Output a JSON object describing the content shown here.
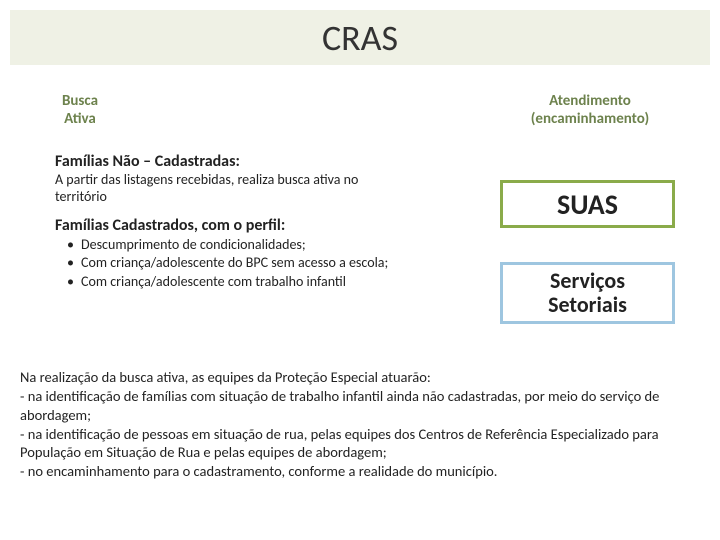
{
  "title": "CRAS",
  "labels": {
    "left_line1": "Busca",
    "left_line2": "Ativa",
    "right_line1": "Atendimento",
    "right_line2": "(encaminhamento)"
  },
  "section1": {
    "heading": "Famílias Não – Cadastradas:",
    "text": "A partir das listagens recebidas, realiza busca ativa no território"
  },
  "section2": {
    "heading": "Famílias Cadastrados, com o perfil:",
    "bullets": [
      "Descumprimento de condicionalidades;",
      "Com criança/adolescente do BPC sem acesso a escola;",
      "Com criança/adolescente com trabalho infantil"
    ]
  },
  "boxes": {
    "suas": "SUAS",
    "servicos_line1": "Serviços",
    "servicos_line2": "Setoriais"
  },
  "footer": {
    "intro": "Na realização da busca ativa, as equipes da Proteção Especial atuarão:",
    "line1": "- na identificação de famílias com situação de trabalho infantil ainda não cadastradas, por meio do serviço de abordagem;",
    "line2": "- na identificação de pessoas em situação de rua, pelas equipes dos Centros de Referência Especializado para População em Situação de Rua e pelas equipes de abordagem;",
    "line3": "- no encaminhamento para o cadastramento, conforme a realidade do município."
  },
  "colors": {
    "title_band_bg": "#eff1e5",
    "olive_text": "#6d824d",
    "suas_border": "#8aab4a",
    "servicos_border": "#9ec6e0"
  }
}
